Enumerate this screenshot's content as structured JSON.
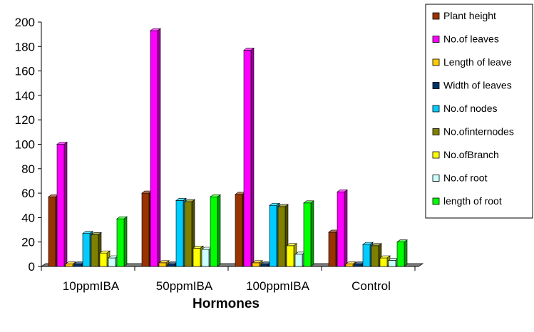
{
  "chart_data": {
    "type": "bar",
    "title": "",
    "xlabel": "Hormones",
    "ylabel": "",
    "ylim": [
      0,
      200
    ],
    "yticks": [
      0,
      20,
      40,
      60,
      80,
      100,
      120,
      140,
      160,
      180,
      200
    ],
    "categories": [
      "10ppmIBA",
      "50ppmIBA",
      "100ppmIBA",
      "Control"
    ],
    "grid": false,
    "legend_position": "right",
    "series": [
      {
        "name": "Plant height",
        "color": "#993300",
        "values": [
          57,
          60,
          59,
          28
        ]
      },
      {
        "name": "No.of leaves",
        "color": "#ff00ff",
        "values": [
          100,
          193,
          177,
          61
        ]
      },
      {
        "name": "Length of leaves",
        "color": "#ffcc00",
        "values": [
          2,
          3,
          3,
          2
        ]
      },
      {
        "name": "Width of leaves",
        "color": "#003366",
        "values": [
          2,
          2,
          2,
          2
        ]
      },
      {
        "name": "No.of nodes",
        "color": "#00ccff",
        "values": [
          27,
          54,
          50,
          18
        ]
      },
      {
        "name": "No.of internodes",
        "color": "#808000",
        "values": [
          26,
          53,
          49,
          17
        ]
      },
      {
        "name": "No.of Branch",
        "color": "#ffff00",
        "values": [
          11,
          15,
          17,
          7
        ]
      },
      {
        "name": "No.of root",
        "color": "#ccffff",
        "values": [
          7,
          14,
          10,
          5
        ]
      },
      {
        "name": "length of root",
        "color": "#00ff00",
        "values": [
          39,
          57,
          52,
          20
        ]
      }
    ],
    "legend_labels": [
      "Plant height",
      "No.of leaves",
      "Length of leave",
      "Width of leaves",
      "No.of nodes",
      "No.ofinternodes",
      "No.ofBranch",
      "No.of root",
      "length of root"
    ]
  }
}
